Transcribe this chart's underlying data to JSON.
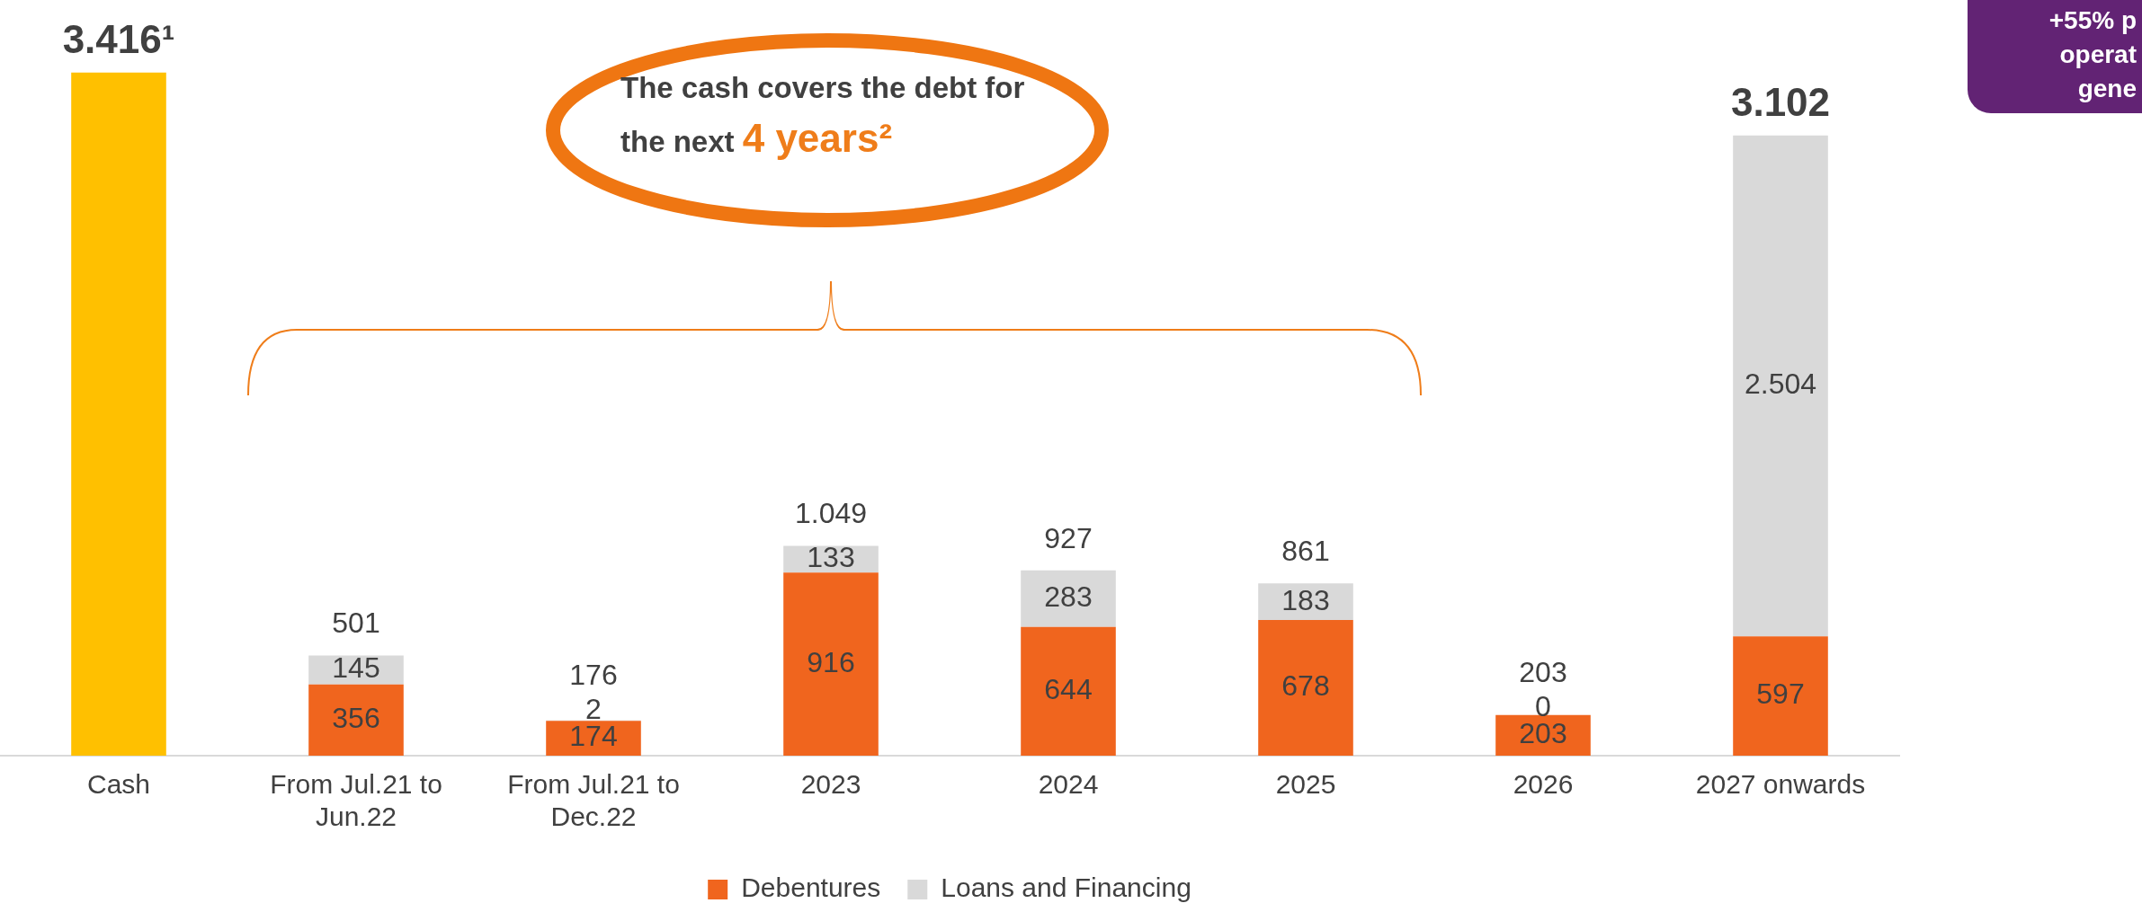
{
  "chart_data": {
    "type": "bar",
    "stacked": true,
    "categories": [
      "Cash",
      "From Jul.21 to Jun.22",
      "From Jul.21 to Dec.22",
      "2023",
      "2024",
      "2025",
      "2026",
      "2027 onwards"
    ],
    "series": [
      {
        "color": "#ffc000",
        "values": [
          3416,
          null,
          null,
          null,
          null,
          null,
          null,
          null
        ],
        "value_labels": [
          null,
          null,
          null,
          null,
          null,
          null,
          null,
          null
        ]
      },
      {
        "name": "Debentures",
        "color": "#f0651e",
        "values": [
          null,
          356,
          174,
          916,
          644,
          678,
          203,
          597
        ],
        "value_labels": [
          null,
          "356",
          "174",
          "916",
          "644",
          "678",
          "203",
          "597"
        ]
      },
      {
        "name": "Loans and Financing",
        "color": "#d9d9d9",
        "values": [
          null,
          145,
          2,
          133,
          283,
          183,
          0,
          2504
        ],
        "value_labels": [
          null,
          "145",
          "2",
          "133",
          "283",
          "183",
          "0",
          "2.504"
        ]
      }
    ],
    "totals": [
      "3.416¹",
      "501",
      "176",
      "1.049",
      "927",
      "861",
      "203",
      "3.102"
    ],
    "legend": "bottom",
    "grid": false,
    "tick_labels": "x",
    "annotations": [
      "The cash covers the debt for the next 4 years²",
      "+55% p\noperat\ngene"
    ]
  }
}
